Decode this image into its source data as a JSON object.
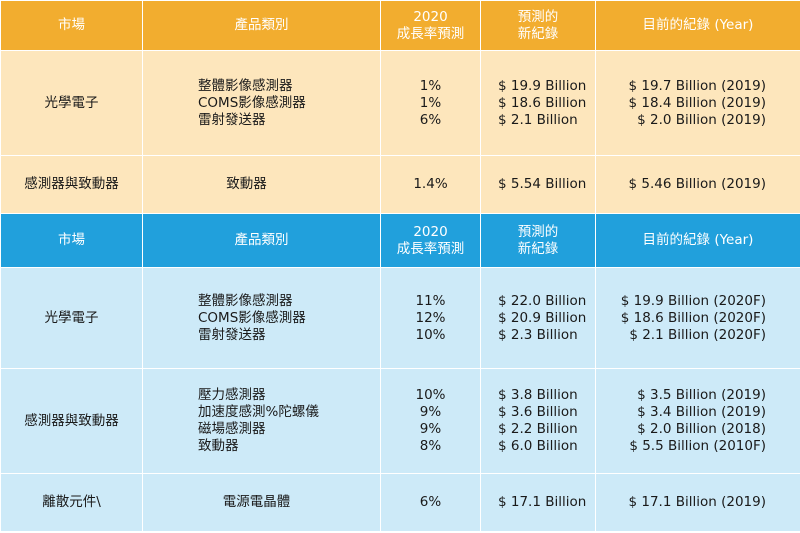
{
  "colors": {
    "orange_header": "#f2ad2f",
    "orange_body": "#fde6bc",
    "blue_header": "#21a0dc",
    "blue_body": "#cdeaf8"
  },
  "table1": {
    "headers": {
      "market": "市場",
      "category": "產品類別",
      "growth_1": "2020",
      "growth_2": "成長率預測",
      "forecast_1": "預測的",
      "forecast_2": "新紀錄",
      "current": "目前的紀錄 (Year)"
    },
    "rows": [
      {
        "market": "光學電子",
        "categories": [
          "整體影像感測器",
          "COMS影像感測器",
          "雷射發送器"
        ],
        "rates": [
          "1%",
          "1%",
          "6%"
        ],
        "forecasts": [
          "$ 19.9 Billion",
          "$ 18.6 Billion",
          "$ 2.1 Billion"
        ],
        "currents": [
          "$ 19.7 Billion (2019)",
          "$ 18.4 Billion (2019)",
          "$ 2.0 Billion (2019)"
        ]
      },
      {
        "market": "感測器與致動器",
        "categories": [
          "致動器"
        ],
        "rates": [
          "1.4%"
        ],
        "forecasts": [
          "$ 5.54 Billion"
        ],
        "currents": [
          "$ 5.46 Billion (2019)"
        ]
      }
    ]
  },
  "table2": {
    "headers": {
      "market": "市場",
      "category": "產品類別",
      "growth_1": "2020",
      "growth_2": "成長率預測",
      "forecast_1": "預測的",
      "forecast_2": "新紀錄",
      "current": "目前的紀錄 (Year)"
    },
    "rows": [
      {
        "market": "光學電子",
        "categories": [
          "整體影像感測器",
          "COMS影像感測器",
          "雷射發送器"
        ],
        "rates": [
          "11%",
          "12%",
          "10%"
        ],
        "forecasts": [
          "$ 22.0 Billion",
          "$ 20.9 Billion",
          "$ 2.3 Billion"
        ],
        "currents": [
          "$ 19.9 Billion (2020F)",
          "$ 18.6 Billion (2020F)",
          "$ 2.1 Billion (2020F)"
        ]
      },
      {
        "market": "感測器與致動器",
        "categories": [
          "壓力感測器",
          "加速度感測%陀螺儀",
          "磁場感測器",
          "致動器"
        ],
        "rates": [
          "10%",
          "9%",
          "9%",
          "8%"
        ],
        "forecasts": [
          "$ 3.8 Billion",
          "$ 3.6 Billion",
          "$ 2.2 Billion",
          "$ 6.0 Billion"
        ],
        "currents": [
          "$ 3.5 Billion (2019)",
          "$ 3.4 Billion (2019)",
          "$ 2.0 Billion (2018)",
          "$ 5.5 Billion (2010F)"
        ]
      },
      {
        "market": "離散元件\\",
        "categories": [
          "電源電晶體"
        ],
        "rates": [
          "6%"
        ],
        "forecasts": [
          "$ 17.1 Billion"
        ],
        "currents": [
          "$ 17.1 Billion (2019)"
        ]
      }
    ]
  }
}
